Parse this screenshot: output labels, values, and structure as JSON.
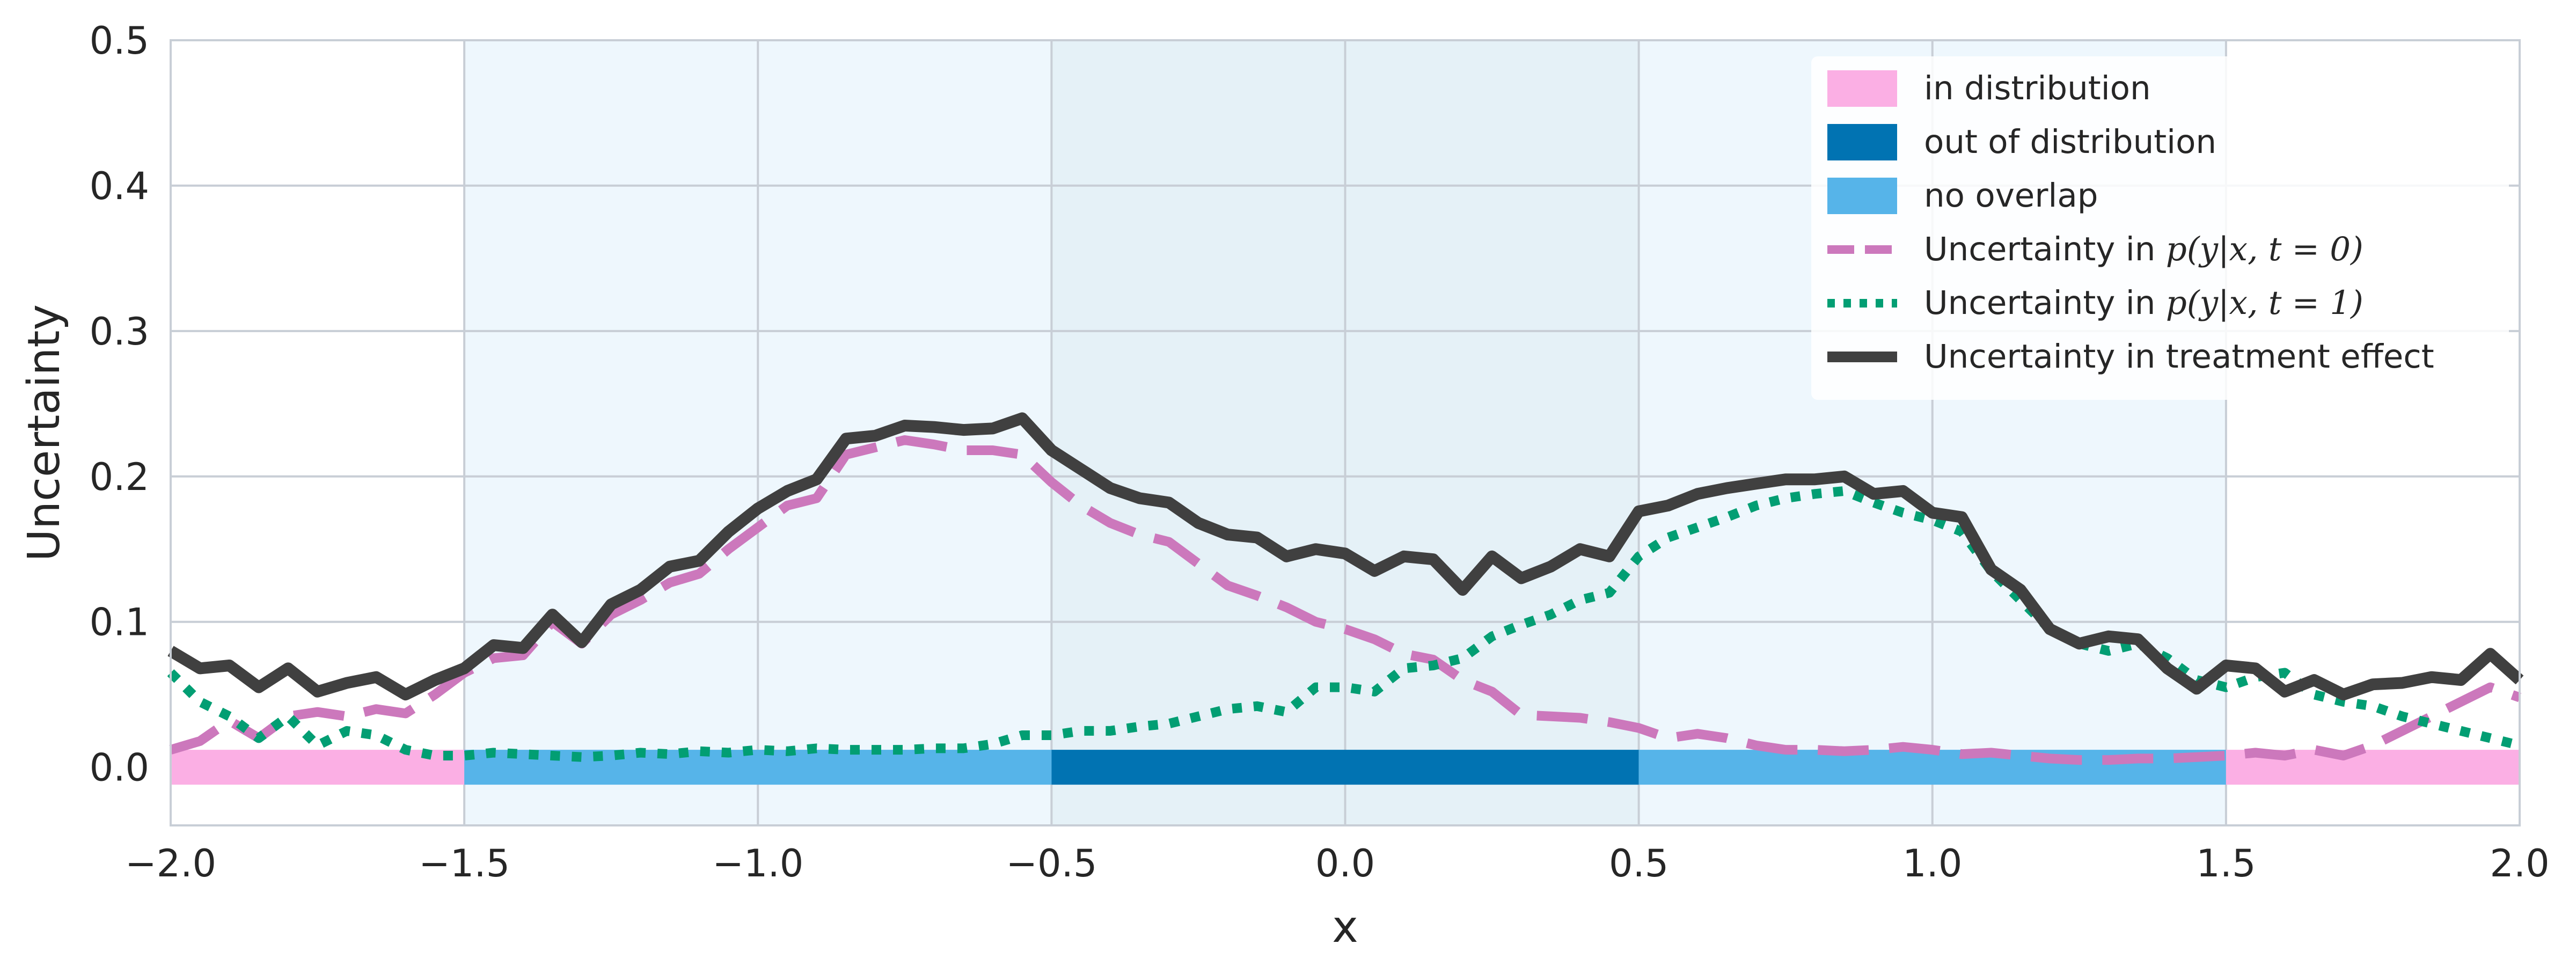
{
  "chart_data": {
    "type": "line",
    "xlabel": "x",
    "ylabel": "Uncertainty",
    "xlim": [
      -2.0,
      2.0
    ],
    "ylim": [
      -0.04,
      0.5
    ],
    "xticks": [
      "−2.0",
      "−1.5",
      "−1.0",
      "−0.5",
      "0.0",
      "0.5",
      "1.0",
      "1.5",
      "2.0"
    ],
    "xtick_values": [
      -2.0,
      -1.5,
      -1.0,
      -0.5,
      0.0,
      0.5,
      1.0,
      1.5,
      2.0
    ],
    "yticks": [
      "0.0",
      "0.1",
      "0.2",
      "0.3",
      "0.4",
      "0.5"
    ],
    "ytick_values": [
      0.0,
      0.1,
      0.2,
      0.3,
      0.4,
      0.5
    ],
    "grid": true,
    "legend_position": "top-right",
    "regions": [
      {
        "name": "in distribution",
        "x_start": -2.0,
        "x_end": -1.5,
        "color": "#fbafe4"
      },
      {
        "name": "no overlap",
        "x_start": -1.5,
        "x_end": -0.5,
        "color": "#56b4e9"
      },
      {
        "name": "out of distribution",
        "x_start": -0.5,
        "x_end": 0.5,
        "color": "#0173b2"
      },
      {
        "name": "no overlap",
        "x_start": 0.5,
        "x_end": 1.5,
        "color": "#56b4e9"
      },
      {
        "name": "in distribution",
        "x_start": 1.5,
        "x_end": 2.0,
        "color": "#fbafe4"
      }
    ],
    "x": [
      -2.0,
      -1.95,
      -1.9,
      -1.85,
      -1.8,
      -1.75,
      -1.7,
      -1.65,
      -1.6,
      -1.55,
      -1.5,
      -1.45,
      -1.4,
      -1.35,
      -1.3,
      -1.25,
      -1.2,
      -1.15,
      -1.1,
      -1.05,
      -1.0,
      -0.95,
      -0.9,
      -0.85,
      -0.8,
      -0.75,
      -0.7,
      -0.65,
      -0.6,
      -0.55,
      -0.5,
      -0.45,
      -0.4,
      -0.35,
      -0.3,
      -0.25,
      -0.2,
      -0.15,
      -0.1,
      -0.05,
      0.0,
      0.05,
      0.1,
      0.15,
      0.2,
      0.25,
      0.3,
      0.35,
      0.4,
      0.45,
      0.5,
      0.55,
      0.6,
      0.65,
      0.7,
      0.75,
      0.8,
      0.85,
      0.9,
      0.95,
      1.0,
      1.05,
      1.1,
      1.15,
      1.2,
      1.25,
      1.3,
      1.35,
      1.4,
      1.45,
      1.5,
      1.55,
      1.6,
      1.65,
      1.7,
      1.75,
      1.8,
      1.85,
      1.9,
      1.95,
      2.0
    ],
    "series": [
      {
        "name": "Uncertainty in $p(y|x, t=0)$",
        "style": "dashed",
        "color": "#cc78bc",
        "values": [
          0.012,
          0.018,
          0.032,
          0.02,
          0.035,
          0.038,
          0.035,
          0.04,
          0.037,
          0.05,
          0.065,
          0.075,
          0.077,
          0.1,
          0.085,
          0.105,
          0.115,
          0.127,
          0.133,
          0.15,
          0.165,
          0.18,
          0.185,
          0.215,
          0.22,
          0.225,
          0.222,
          0.218,
          0.218,
          0.215,
          0.196,
          0.18,
          0.168,
          0.16,
          0.155,
          0.14,
          0.125,
          0.118,
          0.11,
          0.1,
          0.095,
          0.088,
          0.078,
          0.074,
          0.06,
          0.052,
          0.036,
          0.035,
          0.034,
          0.031,
          0.027,
          0.02,
          0.023,
          0.02,
          0.015,
          0.012,
          0.012,
          0.011,
          0.012,
          0.014,
          0.012,
          0.009,
          0.01,
          0.008,
          0.006,
          0.005,
          0.005,
          0.006,
          0.006,
          0.007,
          0.008,
          0.01,
          0.008,
          0.012,
          0.008,
          0.015,
          0.025,
          0.035,
          0.045,
          0.055,
          0.048
        ]
      },
      {
        "name": "Uncertainty in $p(y|x, t=1)$",
        "style": "dotted",
        "color": "#029e73",
        "values": [
          0.065,
          0.045,
          0.035,
          0.02,
          0.035,
          0.015,
          0.025,
          0.022,
          0.012,
          0.008,
          0.008,
          0.01,
          0.009,
          0.008,
          0.007,
          0.008,
          0.01,
          0.009,
          0.011,
          0.01,
          0.012,
          0.011,
          0.013,
          0.012,
          0.012,
          0.012,
          0.013,
          0.013,
          0.016,
          0.022,
          0.022,
          0.025,
          0.025,
          0.028,
          0.03,
          0.035,
          0.04,
          0.042,
          0.038,
          0.055,
          0.055,
          0.052,
          0.068,
          0.07,
          0.075,
          0.09,
          0.098,
          0.105,
          0.115,
          0.12,
          0.145,
          0.158,
          0.165,
          0.172,
          0.18,
          0.185,
          0.188,
          0.19,
          0.182,
          0.175,
          0.17,
          0.162,
          0.135,
          0.115,
          0.095,
          0.085,
          0.08,
          0.085,
          0.075,
          0.06,
          0.055,
          0.062,
          0.065,
          0.05,
          0.045,
          0.042,
          0.035,
          0.03,
          0.025,
          0.02,
          0.015
        ]
      },
      {
        "name": "Uncertainty in treatment effect",
        "style": "solid",
        "color": "#404040",
        "values": [
          0.08,
          0.068,
          0.07,
          0.055,
          0.068,
          0.052,
          0.058,
          0.062,
          0.05,
          0.06,
          0.068,
          0.084,
          0.082,
          0.105,
          0.086,
          0.112,
          0.122,
          0.138,
          0.142,
          0.162,
          0.178,
          0.19,
          0.198,
          0.226,
          0.228,
          0.235,
          0.234,
          0.232,
          0.233,
          0.24,
          0.218,
          0.205,
          0.192,
          0.185,
          0.182,
          0.168,
          0.16,
          0.158,
          0.145,
          0.15,
          0.147,
          0.135,
          0.145,
          0.143,
          0.122,
          0.145,
          0.13,
          0.138,
          0.15,
          0.145,
          0.176,
          0.18,
          0.188,
          0.192,
          0.195,
          0.198,
          0.198,
          0.2,
          0.188,
          0.19,
          0.175,
          0.172,
          0.136,
          0.122,
          0.095,
          0.085,
          0.09,
          0.088,
          0.068,
          0.054,
          0.07,
          0.068,
          0.052,
          0.06,
          0.05,
          0.057,
          0.058,
          0.062,
          0.06,
          0.078,
          0.06
        ]
      }
    ],
    "legend": [
      {
        "label": "in distribution",
        "kind": "patch",
        "color": "#fbafe4"
      },
      {
        "label": "out of distribution",
        "kind": "patch",
        "color": "#0173b2"
      },
      {
        "label": "no overlap",
        "kind": "patch",
        "color": "#56b4e9"
      },
      {
        "label": "Uncertainty in ",
        "math": "p(y|x, t = 0)",
        "kind": "dashed",
        "color": "#cc78bc"
      },
      {
        "label": "Uncertainty in ",
        "math": "p(y|x, t = 1)",
        "kind": "dotted",
        "color": "#029e73"
      },
      {
        "label": "Uncertainty in treatment effect",
        "kind": "solid",
        "color": "#404040"
      }
    ],
    "background_shading": [
      {
        "x_start": -1.5,
        "x_end": -0.5,
        "color": "#56b4e9",
        "opacity": 0.1
      },
      {
        "x_start": -0.5,
        "x_end": 0.5,
        "color": "#0173b2",
        "opacity": 0.1
      },
      {
        "x_start": 0.5,
        "x_end": 1.5,
        "color": "#56b4e9",
        "opacity": 0.1
      }
    ]
  }
}
